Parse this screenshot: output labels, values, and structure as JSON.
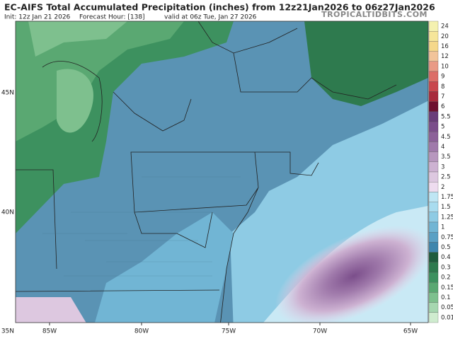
{
  "header": {
    "title": "EC-AIFS Total Accumulated Precipitation (inches) from 12z21Jan2026 to 06z27Jan2026",
    "init": "Init: 12z Jan 21 2026",
    "forecast_hour": "Forecast Hour: [138]",
    "valid": "valid at 06z Tue, Jan 27 2026",
    "brand": "TROPICALTIDBITS.COM"
  },
  "longitude_labels": [
    "85W",
    "80W",
    "75W",
    "70W",
    "65W"
  ],
  "latitude_labels": [
    "45N",
    "40N",
    "35N"
  ],
  "colorbar": [
    {
      "label": "24",
      "color": "#f4f1b0"
    },
    {
      "label": "20",
      "color": "#f6e69a"
    },
    {
      "label": "16",
      "color": "#f5d88a"
    },
    {
      "label": "12",
      "color": "#f2c49a"
    },
    {
      "label": "10",
      "color": "#e99a85"
    },
    {
      "label": "9",
      "color": "#dc6e67"
    },
    {
      "label": "8",
      "color": "#c9474d"
    },
    {
      "label": "7",
      "color": "#a82a3c"
    },
    {
      "label": "6",
      "color": "#6e1030"
    },
    {
      "label": "5.5",
      "color": "#6a3d7a"
    },
    {
      "label": "5",
      "color": "#7b4e8b"
    },
    {
      "label": "4.5",
      "color": "#8c6199"
    },
    {
      "label": "4",
      "color": "#a07aab"
    },
    {
      "label": "3.5",
      "color": "#b797be"
    },
    {
      "label": "3",
      "color": "#cdb2d2"
    },
    {
      "label": "2.5",
      "color": "#ddc8e0"
    },
    {
      "label": "2",
      "color": "#eedcef"
    },
    {
      "label": "1.75",
      "color": "#bfe6f4"
    },
    {
      "label": "1.5",
      "color": "#a9dcef"
    },
    {
      "label": "1.25",
      "color": "#8ecbe4"
    },
    {
      "label": "1",
      "color": "#71b5d4"
    },
    {
      "label": "0.75",
      "color": "#5aa0c4"
    },
    {
      "label": "0.5",
      "color": "#3e86ad"
    },
    {
      "label": "0.4",
      "color": "#1f5c3d"
    },
    {
      "label": "0.3",
      "color": "#2e7a4e"
    },
    {
      "label": "0.2",
      "color": "#3d915f"
    },
    {
      "label": "0.15",
      "color": "#5aa872"
    },
    {
      "label": "0.1",
      "color": "#7ec08e"
    },
    {
      "label": "0.05",
      "color": "#a6d7b0"
    },
    {
      "label": "0.01",
      "color": "#cfeccf"
    }
  ]
}
